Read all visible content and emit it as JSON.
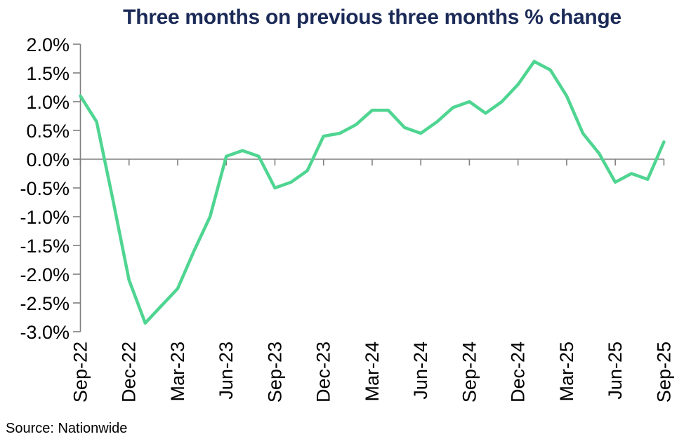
{
  "source_note": "Source: Nationwide",
  "colors": {
    "line": "#4fd591",
    "axis": "#7f7f7f",
    "title_text": "#1b2a57",
    "label_text": "#000000",
    "background": "#ffffff"
  },
  "chart_data": {
    "type": "line",
    "title": "Three months on previous three months % change",
    "x": [
      "Sep-22",
      "Oct-22",
      "Nov-22",
      "Dec-22",
      "Jan-23",
      "Feb-23",
      "Mar-23",
      "Apr-23",
      "May-23",
      "Jun-23",
      "Jul-23",
      "Aug-23",
      "Sep-23",
      "Oct-23",
      "Nov-23",
      "Dec-23",
      "Jan-24",
      "Feb-24",
      "Mar-24",
      "Apr-24",
      "May-24",
      "Jun-24",
      "Jul-24",
      "Aug-24",
      "Sep-24",
      "Oct-24",
      "Nov-24",
      "Dec-24",
      "Jan-25",
      "Feb-25",
      "Mar-25",
      "Apr-25",
      "May-25",
      "Jun-25",
      "Jul-25",
      "Aug-25",
      "Sep-25"
    ],
    "values": [
      1.1,
      0.65,
      -0.7,
      -2.1,
      -2.85,
      -2.55,
      -2.25,
      -1.6,
      -1.0,
      0.05,
      0.15,
      0.05,
      -0.5,
      -0.4,
      -0.2,
      0.4,
      0.45,
      0.6,
      0.85,
      0.85,
      0.55,
      0.45,
      0.65,
      0.9,
      1.0,
      0.8,
      1.0,
      1.3,
      1.7,
      1.55,
      1.1,
      0.45,
      0.1,
      -0.4,
      -0.25,
      -0.35,
      0.3
    ],
    "series_name": "3 months on previous 3 months % change",
    "x_tick_labels": [
      "Sep-22",
      "Dec-22",
      "Mar-23",
      "Jun-23",
      "Sep-23",
      "Dec-23",
      "Mar-24",
      "Jun-24",
      "Sep-24",
      "Dec-24",
      "Mar-25",
      "Jun-25",
      "Sep-25"
    ],
    "y_tick_values": [
      2.0,
      1.5,
      1.0,
      0.5,
      0.0,
      -0.5,
      -1.0,
      -1.5,
      -2.0,
      -2.5,
      -3.0
    ],
    "y_tick_labels": [
      "2.0%",
      "1.5%",
      "1.0%",
      "0.5%",
      "0.0%",
      "-0.5%",
      "-1.0%",
      "-1.5%",
      "-2.0%",
      "-2.5%",
      "-3.0%"
    ],
    "ylim": [
      -3.0,
      2.0
    ],
    "grid": false,
    "legend": "none",
    "xlabel": "",
    "ylabel": ""
  }
}
